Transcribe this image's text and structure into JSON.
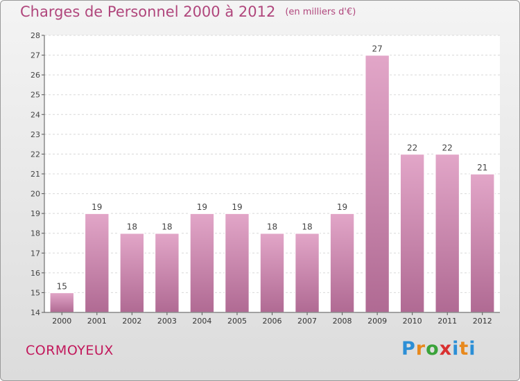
{
  "title": "Charges de Personnel 2000 à 2012",
  "subtitle": "(en milliers d'€)",
  "commune": "CORMOYEUX",
  "brand": {
    "letters": [
      "P",
      "r",
      "o",
      "x",
      "i",
      "t",
      "i"
    ],
    "colors": [
      "#2c8fd6",
      "#e8891d",
      "#3aa33a",
      "#d93030",
      "#2c8fd6",
      "#e8891d",
      "#2c8fd6"
    ]
  },
  "colors": {
    "title": "#b0467c",
    "bar_top": "#e2a6c8",
    "bar_bottom": "#b06a93",
    "commune": "#c2185b"
  },
  "chart_data": {
    "type": "bar",
    "categories": [
      "2000",
      "2001",
      "2002",
      "2003",
      "2004",
      "2005",
      "2006",
      "2007",
      "2008",
      "2009",
      "2010",
      "2011",
      "2012"
    ],
    "values": [
      15,
      19,
      18,
      18,
      19,
      19,
      18,
      18,
      19,
      27,
      22,
      22,
      21
    ],
    "ylim": [
      14,
      28
    ],
    "yticks": [
      "14",
      "15",
      "16",
      "17",
      "18",
      "19",
      "20",
      "21",
      "22",
      "23",
      "24",
      "25",
      "26",
      "27",
      "28"
    ],
    "grid": "y",
    "data_labels": true
  }
}
